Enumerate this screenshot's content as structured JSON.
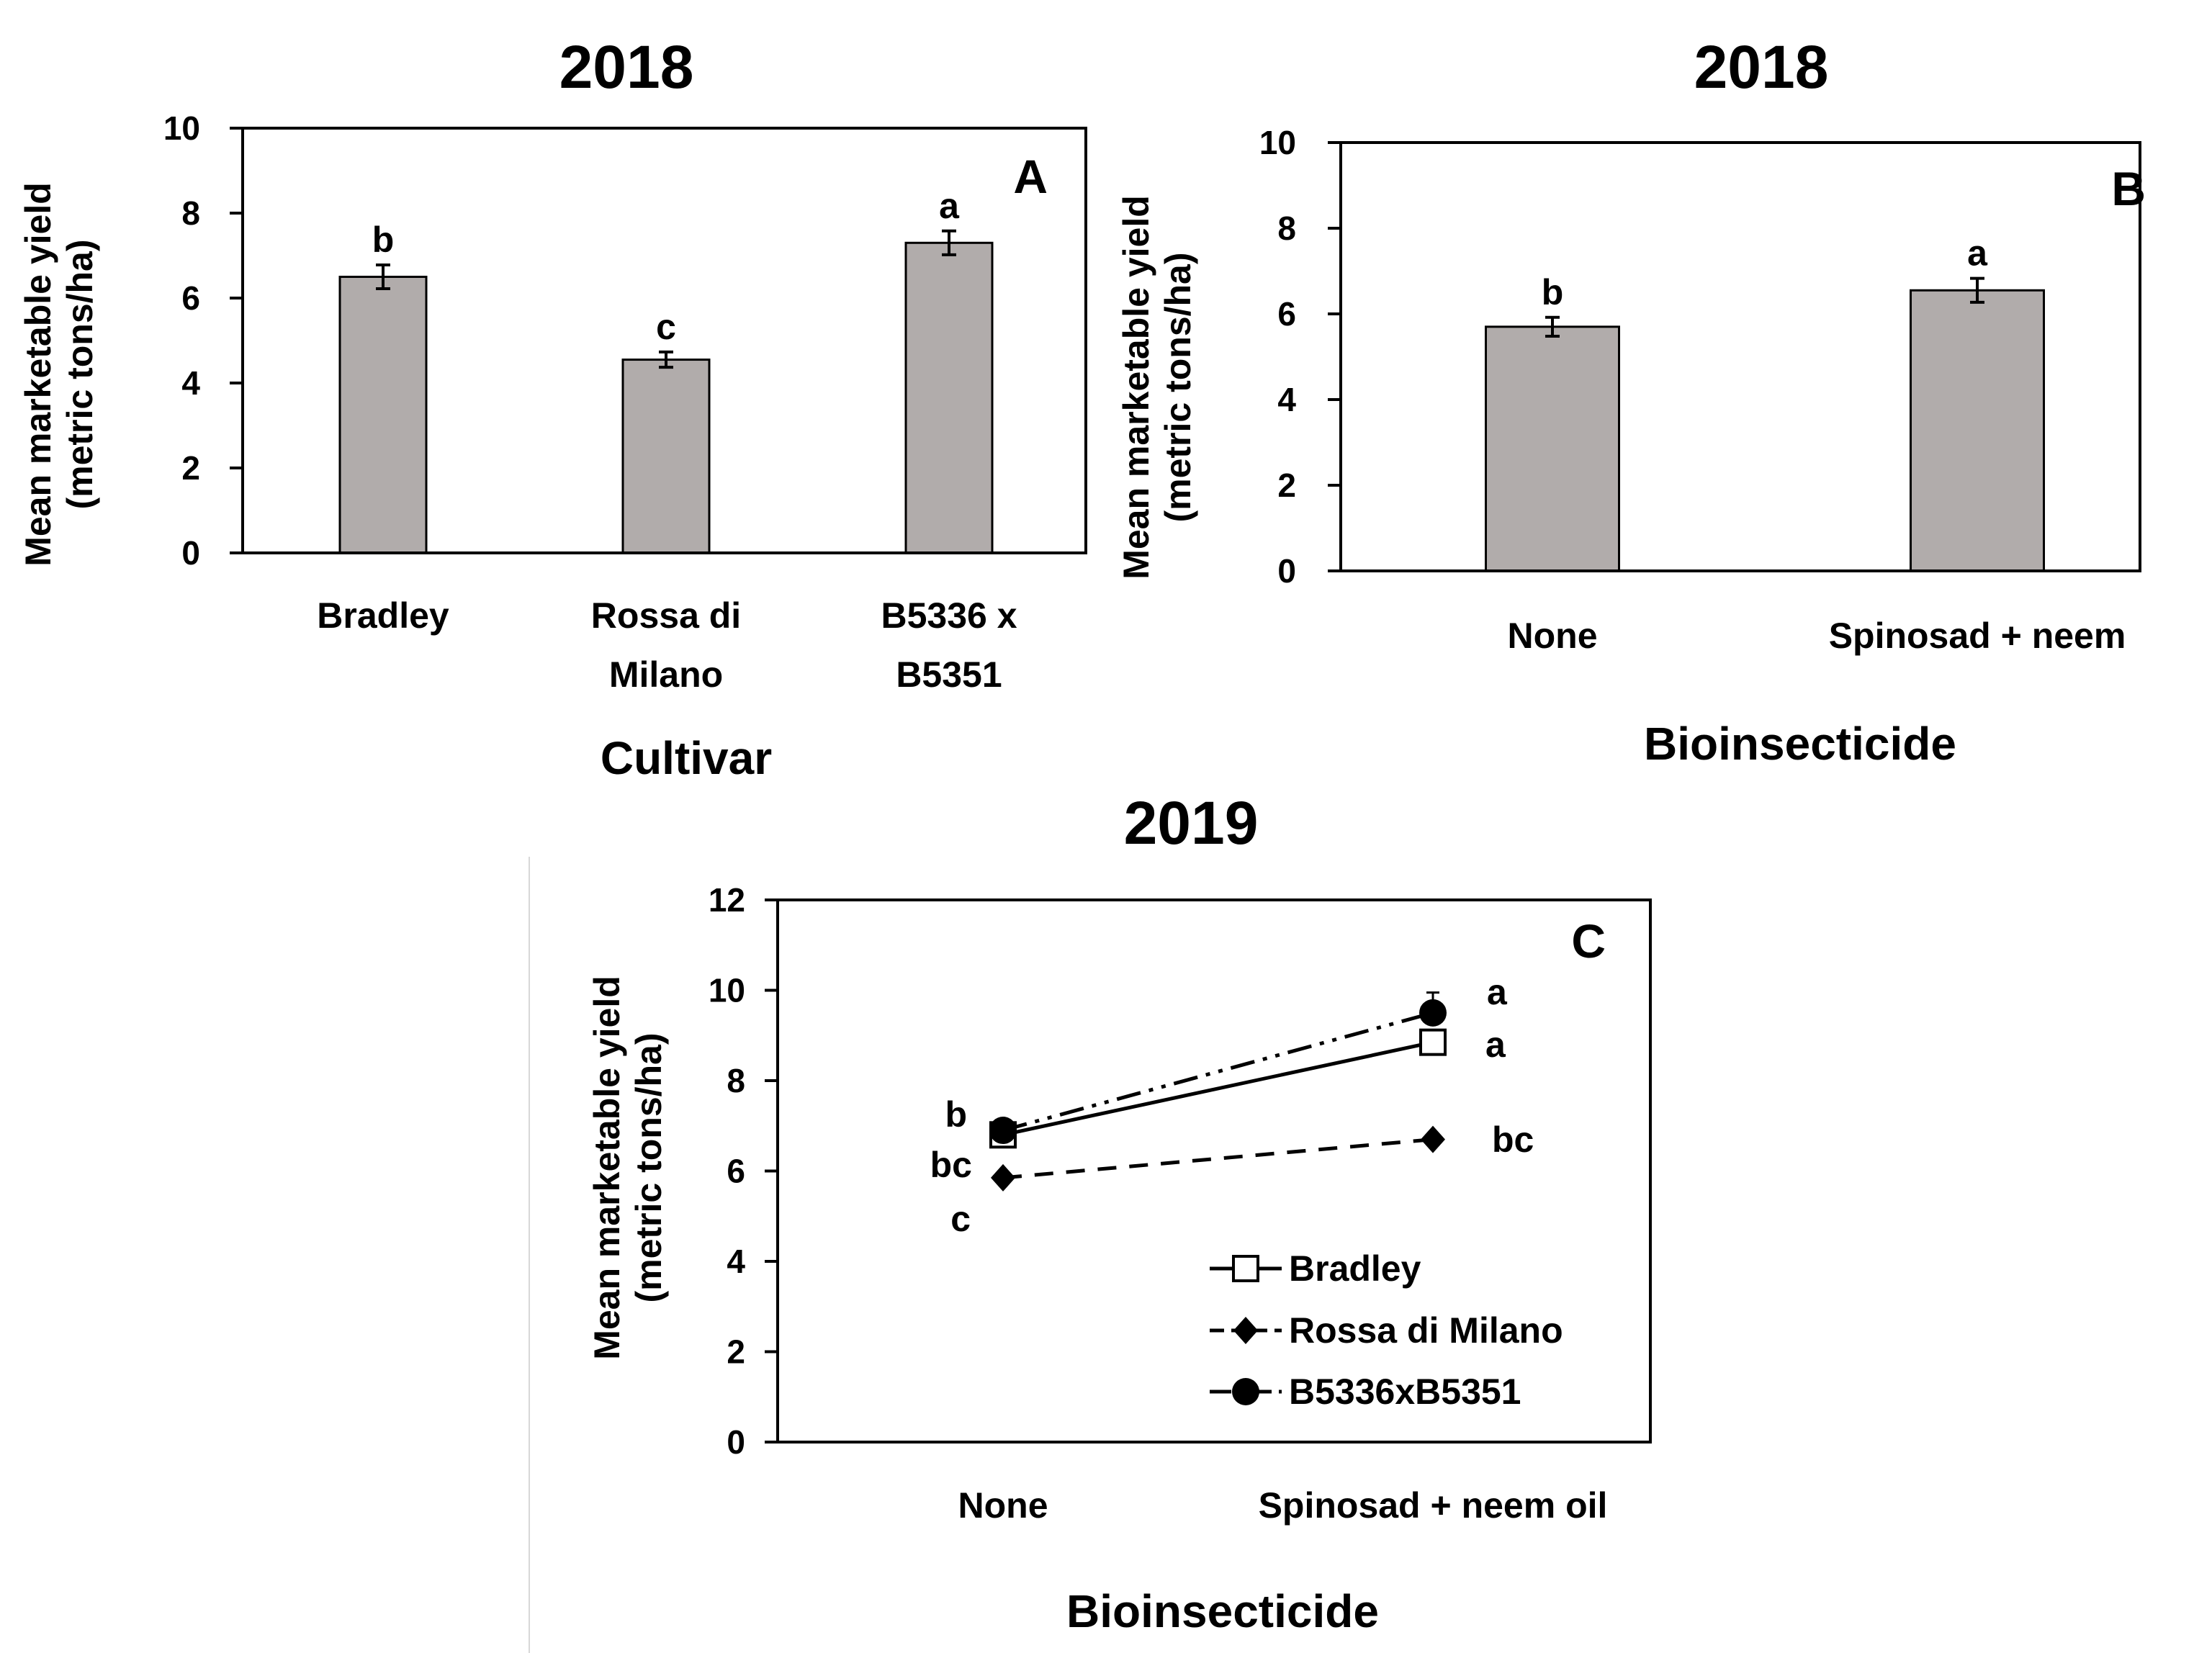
{
  "chart_data": [
    {
      "id": "A",
      "type": "bar",
      "title": "2018",
      "panel_label": "A",
      "xlabel": "Cultivar",
      "ylabel": [
        "Mean marketable yield",
        "(metric tons/ha)"
      ],
      "categories": [
        [
          "Bradley"
        ],
        [
          "Rossa di",
          "Milano"
        ],
        [
          "B5336 x",
          "B5351"
        ]
      ],
      "values": [
        6.5,
        4.55,
        7.3
      ],
      "errors": [
        0.28,
        0.18,
        0.28
      ],
      "significance": [
        "b",
        "c",
        "a"
      ],
      "ylim": [
        0,
        10
      ],
      "yticks": [
        "0",
        "2",
        "4",
        "6",
        "8",
        "10"
      ],
      "bar_color": "#b1acab"
    },
    {
      "id": "B",
      "type": "bar",
      "title": "2018",
      "panel_label": "B",
      "xlabel": "Bioinsecticide",
      "ylabel": [
        "Mean marketable yield",
        "(metric tons/ha)"
      ],
      "categories": [
        [
          "None"
        ],
        [
          "Spinosad + neem"
        ]
      ],
      "values": [
        5.7,
        6.55
      ],
      "errors": [
        0.22,
        0.28
      ],
      "significance": [
        "b",
        "a"
      ],
      "ylim": [
        0,
        10
      ],
      "yticks": [
        "0",
        "2",
        "4",
        "6",
        "8",
        "10"
      ],
      "bar_color": "#b1acab"
    },
    {
      "id": "C",
      "type": "line",
      "title": "2019",
      "panel_label": "C",
      "xlabel": "Bioinsecticide",
      "ylabel": [
        "Mean marketable yield",
        "(metric tons/ha)"
      ],
      "categories": [
        [
          "None"
        ],
        [
          "Spinosad + neem oil"
        ]
      ],
      "ylim": [
        0,
        12
      ],
      "yticks": [
        "0",
        "2",
        "4",
        "6",
        "8",
        "10",
        "12"
      ],
      "series": [
        {
          "name": "Bradley",
          "values": [
            6.8,
            8.85
          ],
          "marker": "square",
          "dash": "solid",
          "labels": [
            "",
            "a"
          ]
        },
        {
          "name": "Rossa di Milano",
          "values": [
            5.85,
            6.7
          ],
          "marker": "diamond",
          "dash": "dashed",
          "labels": [
            "bc",
            "bc"
          ]
        },
        {
          "name": "B5336xB5351",
          "values": [
            6.9,
            9.5
          ],
          "marker": "circle",
          "dash": "dash-dot-dot",
          "labels": [
            "b",
            "a"
          ]
        }
      ],
      "extra_annotations": [
        "c"
      ]
    }
  ]
}
